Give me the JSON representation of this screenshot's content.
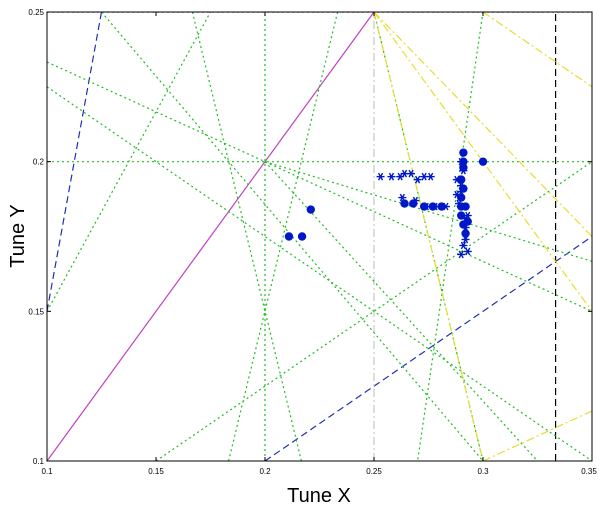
{
  "chart_data": {
    "type": "scatter",
    "xlabel": "Tune X",
    "ylabel": "Tune Y",
    "xlim": [
      0.1,
      0.35
    ],
    "ylim": [
      0.1,
      0.25
    ],
    "x_ticks": [
      0.1,
      0.15,
      0.2,
      0.25,
      0.3,
      0.35
    ],
    "x_tick_labels": [
      "0.1",
      "0.15",
      "0.2",
      "0.25",
      "0.3",
      "0.35"
    ],
    "y_ticks": [
      0.1,
      0.15,
      0.2,
      0.25
    ],
    "y_tick_labels": [
      "0.1",
      "0.15",
      "0.2",
      "0.25"
    ],
    "grid": false,
    "colors": {
      "points": "#0018c8",
      "resonance_green": "#22bb22",
      "resonance_yellow": "#e8dc30",
      "resonance_blue": "#2030b0",
      "diagonal": "#c040c0",
      "frame": "#000000",
      "dashdot": "#c8c8c8"
    },
    "resonance_lines": [
      {
        "style": "solid",
        "color": "diagonal",
        "p1": [
          0.1,
          0.1
        ],
        "p2": [
          0.25,
          0.25
        ]
      },
      {
        "style": "dashed",
        "color": "resonance_blue",
        "p1": [
          0.1,
          0.15
        ],
        "p2": [
          0.125,
          0.25
        ]
      },
      {
        "style": "dashed",
        "color": "resonance_blue",
        "p1": [
          0.2,
          0.1
        ],
        "p2": [
          0.35,
          0.175
        ]
      },
      {
        "style": "dashed",
        "color": "frame",
        "p1": [
          0.3333,
          0.1
        ],
        "p2": [
          0.3333,
          0.25
        ]
      },
      {
        "style": "dotted",
        "color": "frame",
        "p1": [
          0.1,
          0.25
        ],
        "p2": [
          0.35,
          0.25
        ]
      },
      {
        "style": "dashdot",
        "color": "dashdot",
        "p1": [
          0.25,
          0.1
        ],
        "p2": [
          0.25,
          0.25
        ]
      },
      {
        "style": "dotted",
        "color": "resonance_green",
        "p1": [
          0.2,
          0.1
        ],
        "p2": [
          0.2,
          0.25
        ]
      },
      {
        "style": "dotted",
        "color": "resonance_green",
        "p1": [
          0.1,
          0.2
        ],
        "p2": [
          0.35,
          0.2
        ]
      },
      {
        "style": "dotted",
        "color": "resonance_green",
        "p1": [
          0.1,
          0.15
        ],
        "p2": [
          0.175,
          0.25
        ]
      },
      {
        "style": "dotted",
        "color": "resonance_green",
        "p1": [
          0.1,
          0.225
        ],
        "p2": [
          0.35,
          0.1
        ]
      },
      {
        "style": "dotted",
        "color": "resonance_green",
        "p1": [
          0.1,
          0.2333
        ],
        "p2": [
          0.35,
          0.15
        ]
      },
      {
        "style": "dotted",
        "color": "resonance_green",
        "p1": [
          0.125,
          0.25
        ],
        "p2": [
          0.3,
          0.1
        ]
      },
      {
        "style": "dotted",
        "color": "resonance_green",
        "p1": [
          0.1667,
          0.25
        ],
        "p2": [
          0.2167,
          0.1
        ]
      },
      {
        "style": "dotted",
        "color": "resonance_green",
        "p1": [
          0.2333,
          0.25
        ],
        "p2": [
          0.1833,
          0.1
        ]
      },
      {
        "style": "dotted",
        "color": "resonance_green",
        "p1": [
          0.25,
          0.25
        ],
        "p2": [
          0.3,
          0.1
        ]
      },
      {
        "style": "dotted",
        "color": "resonance_green",
        "p1": [
          0.2,
          0.2
        ],
        "p2": [
          0.325,
          0.1
        ]
      },
      {
        "style": "dotted",
        "color": "resonance_green",
        "p1": [
          0.2,
          0.2
        ],
        "p2": [
          0.35,
          0.1667
        ]
      },
      {
        "style": "dotted",
        "color": "resonance_green",
        "p1": [
          0.15,
          0.1
        ],
        "p2": [
          0.35,
          0.2
        ]
      },
      {
        "style": "dotted",
        "color": "resonance_green",
        "p1": [
          0.3,
          0.25
        ],
        "p2": [
          0.27,
          0.1
        ]
      },
      {
        "style": "dashdot",
        "color": "resonance_yellow",
        "p1": [
          0.25,
          0.25
        ],
        "p2": [
          0.35,
          0.15
        ]
      },
      {
        "style": "dashdot",
        "color": "resonance_yellow",
        "p1": [
          0.25,
          0.25
        ],
        "p2": [
          0.3,
          0.1
        ]
      },
      {
        "style": "dashdot",
        "color": "resonance_yellow",
        "p1": [
          0.25,
          0.25
        ],
        "p2": [
          0.35,
          0.175
        ]
      },
      {
        "style": "dashdot",
        "color": "resonance_yellow",
        "p1": [
          0.35,
          0.1167
        ],
        "p2": [
          0.3,
          0.1
        ]
      },
      {
        "style": "dashdot",
        "color": "resonance_yellow",
        "p1": [
          0.3,
          0.25
        ],
        "p2": [
          0.35,
          0.225
        ]
      }
    ],
    "series": [
      {
        "marker": "dot",
        "points": [
          [
            0.211,
            0.175
          ],
          [
            0.217,
            0.175
          ],
          [
            0.221,
            0.184
          ],
          [
            0.264,
            0.186
          ],
          [
            0.268,
            0.186
          ],
          [
            0.273,
            0.185
          ],
          [
            0.277,
            0.185
          ],
          [
            0.281,
            0.185
          ],
          [
            0.29,
            0.185
          ],
          [
            0.292,
            0.185
          ],
          [
            0.29,
            0.188
          ],
          [
            0.291,
            0.191
          ],
          [
            0.29,
            0.194
          ],
          [
            0.291,
            0.198
          ],
          [
            0.291,
            0.2
          ],
          [
            0.291,
            0.203
          ],
          [
            0.3,
            0.2
          ],
          [
            0.29,
            0.182
          ],
          [
            0.291,
            0.179
          ],
          [
            0.292,
            0.176
          ],
          [
            0.293,
            0.18
          ]
        ]
      },
      {
        "marker": "asterisk",
        "points": [
          [
            0.253,
            0.195
          ],
          [
            0.258,
            0.195
          ],
          [
            0.262,
            0.195
          ],
          [
            0.264,
            0.196
          ],
          [
            0.267,
            0.196
          ],
          [
            0.27,
            0.194
          ],
          [
            0.273,
            0.195
          ],
          [
            0.276,
            0.195
          ],
          [
            0.288,
            0.194
          ],
          [
            0.289,
            0.186
          ],
          [
            0.263,
            0.188
          ],
          [
            0.269,
            0.187
          ],
          [
            0.274,
            0.185
          ],
          [
            0.278,
            0.185
          ],
          [
            0.283,
            0.185
          ],
          [
            0.29,
            0.2
          ],
          [
            0.291,
            0.197
          ],
          [
            0.29,
            0.19
          ],
          [
            0.293,
            0.182
          ],
          [
            0.292,
            0.178
          ],
          [
            0.292,
            0.174
          ],
          [
            0.291,
            0.172
          ],
          [
            0.29,
            0.169
          ],
          [
            0.293,
            0.17
          ],
          [
            0.292,
            0.181
          ],
          [
            0.288,
            0.189
          ],
          [
            0.29,
            0.192
          ]
        ]
      }
    ]
  }
}
